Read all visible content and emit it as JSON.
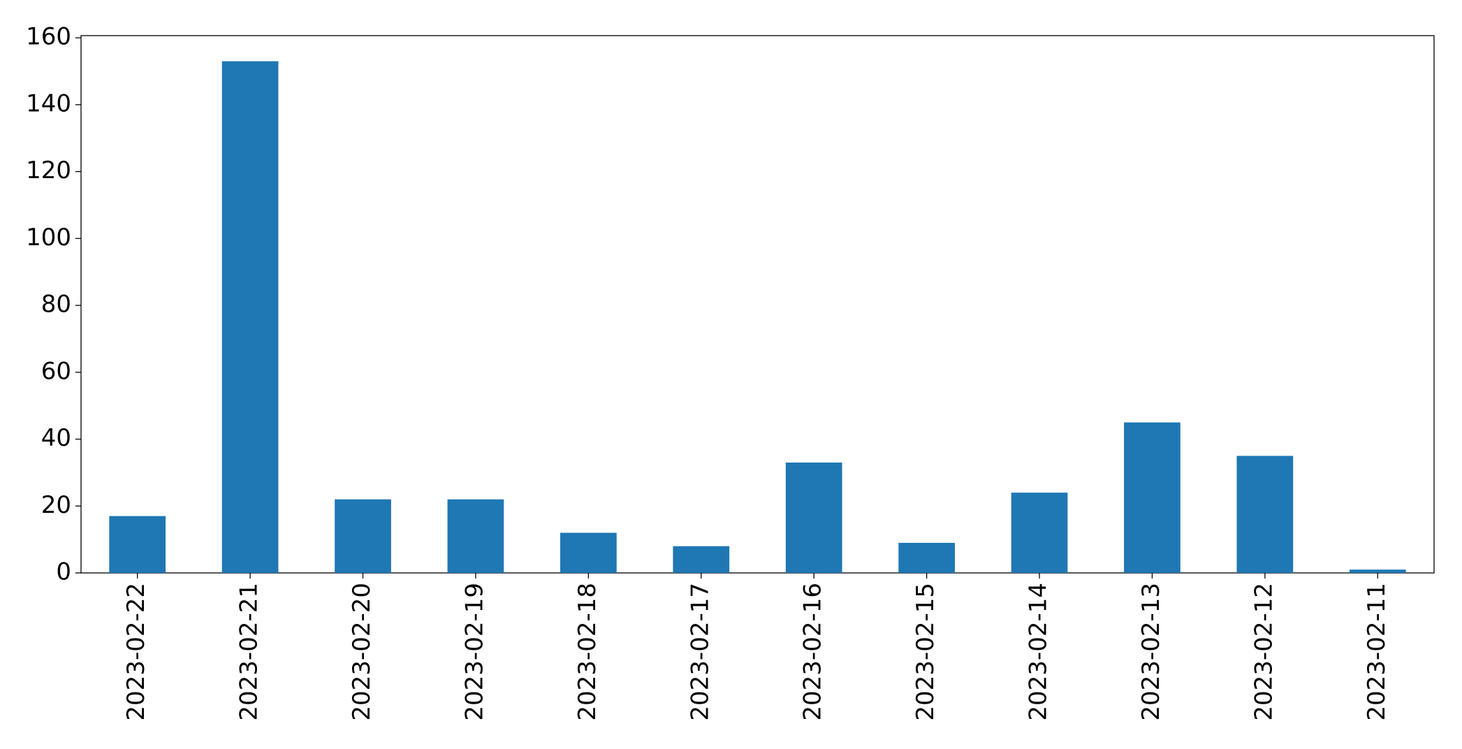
{
  "chart_data": {
    "type": "bar",
    "categories": [
      "2023-02-22",
      "2023-02-21",
      "2023-02-20",
      "2023-02-19",
      "2023-02-18",
      "2023-02-17",
      "2023-02-16",
      "2023-02-15",
      "2023-02-14",
      "2023-02-13",
      "2023-02-12",
      "2023-02-11"
    ],
    "values": [
      17,
      153,
      22,
      22,
      12,
      8,
      33,
      9,
      24,
      45,
      35,
      1
    ],
    "color": "#1f77b4",
    "ylim": [
      0,
      160.65
    ],
    "yticks": [
      0,
      20,
      40,
      60,
      80,
      100,
      120,
      140,
      160
    ],
    "grid": false
  }
}
